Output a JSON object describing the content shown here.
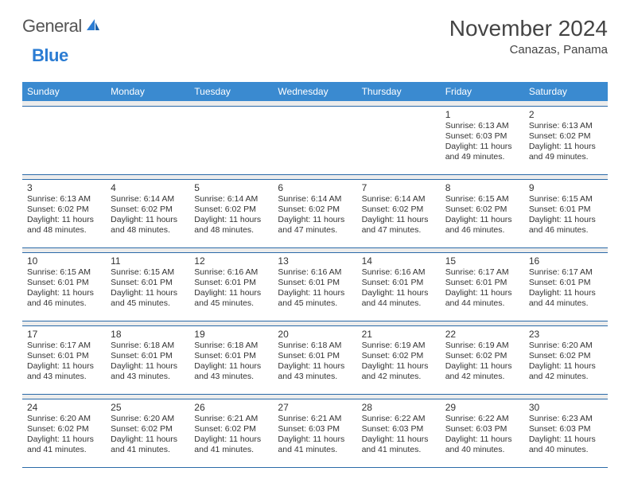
{
  "logo": {
    "text1": "General",
    "text2": "Blue"
  },
  "title": "November 2024",
  "location": "Canazas, Panama",
  "columns": [
    "Sunday",
    "Monday",
    "Tuesday",
    "Wednesday",
    "Thursday",
    "Friday",
    "Saturday"
  ],
  "colors": {
    "header_bg": "#3a8ad0",
    "header_text": "#ffffff",
    "row_border": "#2b6aa8",
    "gap_bg": "#ececec",
    "body_text": "#333333",
    "logo_gray": "#555555",
    "logo_blue": "#2b7cd3"
  },
  "weeks": [
    [
      null,
      null,
      null,
      null,
      null,
      {
        "n": "1",
        "sr": "Sunrise: 6:13 AM",
        "ss": "Sunset: 6:03 PM",
        "dl": "Daylight: 11 hours and 49 minutes."
      },
      {
        "n": "2",
        "sr": "Sunrise: 6:13 AM",
        "ss": "Sunset: 6:02 PM",
        "dl": "Daylight: 11 hours and 49 minutes."
      }
    ],
    [
      {
        "n": "3",
        "sr": "Sunrise: 6:13 AM",
        "ss": "Sunset: 6:02 PM",
        "dl": "Daylight: 11 hours and 48 minutes."
      },
      {
        "n": "4",
        "sr": "Sunrise: 6:14 AM",
        "ss": "Sunset: 6:02 PM",
        "dl": "Daylight: 11 hours and 48 minutes."
      },
      {
        "n": "5",
        "sr": "Sunrise: 6:14 AM",
        "ss": "Sunset: 6:02 PM",
        "dl": "Daylight: 11 hours and 48 minutes."
      },
      {
        "n": "6",
        "sr": "Sunrise: 6:14 AM",
        "ss": "Sunset: 6:02 PM",
        "dl": "Daylight: 11 hours and 47 minutes."
      },
      {
        "n": "7",
        "sr": "Sunrise: 6:14 AM",
        "ss": "Sunset: 6:02 PM",
        "dl": "Daylight: 11 hours and 47 minutes."
      },
      {
        "n": "8",
        "sr": "Sunrise: 6:15 AM",
        "ss": "Sunset: 6:02 PM",
        "dl": "Daylight: 11 hours and 46 minutes."
      },
      {
        "n": "9",
        "sr": "Sunrise: 6:15 AM",
        "ss": "Sunset: 6:01 PM",
        "dl": "Daylight: 11 hours and 46 minutes."
      }
    ],
    [
      {
        "n": "10",
        "sr": "Sunrise: 6:15 AM",
        "ss": "Sunset: 6:01 PM",
        "dl": "Daylight: 11 hours and 46 minutes."
      },
      {
        "n": "11",
        "sr": "Sunrise: 6:15 AM",
        "ss": "Sunset: 6:01 PM",
        "dl": "Daylight: 11 hours and 45 minutes."
      },
      {
        "n": "12",
        "sr": "Sunrise: 6:16 AM",
        "ss": "Sunset: 6:01 PM",
        "dl": "Daylight: 11 hours and 45 minutes."
      },
      {
        "n": "13",
        "sr": "Sunrise: 6:16 AM",
        "ss": "Sunset: 6:01 PM",
        "dl": "Daylight: 11 hours and 45 minutes."
      },
      {
        "n": "14",
        "sr": "Sunrise: 6:16 AM",
        "ss": "Sunset: 6:01 PM",
        "dl": "Daylight: 11 hours and 44 minutes."
      },
      {
        "n": "15",
        "sr": "Sunrise: 6:17 AM",
        "ss": "Sunset: 6:01 PM",
        "dl": "Daylight: 11 hours and 44 minutes."
      },
      {
        "n": "16",
        "sr": "Sunrise: 6:17 AM",
        "ss": "Sunset: 6:01 PM",
        "dl": "Daylight: 11 hours and 44 minutes."
      }
    ],
    [
      {
        "n": "17",
        "sr": "Sunrise: 6:17 AM",
        "ss": "Sunset: 6:01 PM",
        "dl": "Daylight: 11 hours and 43 minutes."
      },
      {
        "n": "18",
        "sr": "Sunrise: 6:18 AM",
        "ss": "Sunset: 6:01 PM",
        "dl": "Daylight: 11 hours and 43 minutes."
      },
      {
        "n": "19",
        "sr": "Sunrise: 6:18 AM",
        "ss": "Sunset: 6:01 PM",
        "dl": "Daylight: 11 hours and 43 minutes."
      },
      {
        "n": "20",
        "sr": "Sunrise: 6:18 AM",
        "ss": "Sunset: 6:01 PM",
        "dl": "Daylight: 11 hours and 43 minutes."
      },
      {
        "n": "21",
        "sr": "Sunrise: 6:19 AM",
        "ss": "Sunset: 6:02 PM",
        "dl": "Daylight: 11 hours and 42 minutes."
      },
      {
        "n": "22",
        "sr": "Sunrise: 6:19 AM",
        "ss": "Sunset: 6:02 PM",
        "dl": "Daylight: 11 hours and 42 minutes."
      },
      {
        "n": "23",
        "sr": "Sunrise: 6:20 AM",
        "ss": "Sunset: 6:02 PM",
        "dl": "Daylight: 11 hours and 42 minutes."
      }
    ],
    [
      {
        "n": "24",
        "sr": "Sunrise: 6:20 AM",
        "ss": "Sunset: 6:02 PM",
        "dl": "Daylight: 11 hours and 41 minutes."
      },
      {
        "n": "25",
        "sr": "Sunrise: 6:20 AM",
        "ss": "Sunset: 6:02 PM",
        "dl": "Daylight: 11 hours and 41 minutes."
      },
      {
        "n": "26",
        "sr": "Sunrise: 6:21 AM",
        "ss": "Sunset: 6:02 PM",
        "dl": "Daylight: 11 hours and 41 minutes."
      },
      {
        "n": "27",
        "sr": "Sunrise: 6:21 AM",
        "ss": "Sunset: 6:03 PM",
        "dl": "Daylight: 11 hours and 41 minutes."
      },
      {
        "n": "28",
        "sr": "Sunrise: 6:22 AM",
        "ss": "Sunset: 6:03 PM",
        "dl": "Daylight: 11 hours and 41 minutes."
      },
      {
        "n": "29",
        "sr": "Sunrise: 6:22 AM",
        "ss": "Sunset: 6:03 PM",
        "dl": "Daylight: 11 hours and 40 minutes."
      },
      {
        "n": "30",
        "sr": "Sunrise: 6:23 AM",
        "ss": "Sunset: 6:03 PM",
        "dl": "Daylight: 11 hours and 40 minutes."
      }
    ]
  ]
}
